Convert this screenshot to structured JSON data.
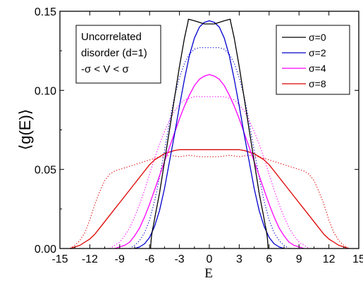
{
  "chart_data": {
    "type": "line",
    "title": "",
    "xlabel": "E",
    "ylabel": "⟨g(E)⟩",
    "xlim": [
      -15,
      15
    ],
    "ylim": [
      0,
      0.15
    ],
    "xticks": [
      -15,
      -12,
      -9,
      -6,
      -3,
      0,
      3,
      6,
      9,
      12,
      15
    ],
    "xtick_labels": [
      "-15",
      "-12",
      "-9",
      "-6",
      "-3",
      "0",
      "3",
      "6",
      "9",
      "12",
      "15"
    ],
    "yticks": [
      0,
      0.05,
      0.1,
      0.15
    ],
    "ytick_labels": [
      "0.00",
      "0.05",
      "0.10",
      "0.15"
    ],
    "annotation_lines": [
      "Uncorrelated",
      "disorder (d=1)",
      "-σ < V < σ"
    ],
    "legend_position": "top-right",
    "grid": false,
    "series": [
      {
        "name": "σ=0",
        "color": "#000000",
        "x": [
          -5.9,
          -5.85,
          -5.8,
          -5.7,
          -5.6,
          -5.4,
          -5.0,
          -4.5,
          -4.0,
          -3.5,
          -3.0,
          -2.5,
          -2.15,
          -2.1,
          -1.5,
          -1.0,
          -0.5,
          0,
          0.5,
          1.0,
          1.5,
          2.1,
          2.15,
          2.5,
          3.0,
          3.5,
          4.0,
          4.5,
          5.0,
          5.4,
          5.6,
          5.7,
          5.8,
          5.85,
          5.9
        ],
        "y": [
          0,
          0.005,
          0.008,
          0.012,
          0.015,
          0.022,
          0.035,
          0.055,
          0.075,
          0.095,
          0.115,
          0.133,
          0.143,
          0.145,
          0.144,
          0.143,
          0.142,
          0.142,
          0.142,
          0.143,
          0.144,
          0.145,
          0.143,
          0.133,
          0.115,
          0.095,
          0.075,
          0.055,
          0.035,
          0.022,
          0.015,
          0.012,
          0.008,
          0.005,
          0
        ]
      },
      {
        "name": "σ=2",
        "color": "#0000cc",
        "x": [
          -7.5,
          -7,
          -6.5,
          -6,
          -5.5,
          -5,
          -4.5,
          -4,
          -3.5,
          -3,
          -2.5,
          -2,
          -1.5,
          -1,
          -0.5,
          0,
          0.5,
          1,
          1.5,
          2,
          2.5,
          3,
          3.5,
          4,
          4.5,
          5,
          5.5,
          6,
          6.5,
          7,
          7.5
        ],
        "y": [
          0,
          0.001,
          0.003,
          0.007,
          0.014,
          0.024,
          0.038,
          0.055,
          0.072,
          0.09,
          0.107,
          0.122,
          0.133,
          0.14,
          0.143,
          0.144,
          0.143,
          0.14,
          0.133,
          0.122,
          0.107,
          0.09,
          0.072,
          0.055,
          0.038,
          0.024,
          0.014,
          0.007,
          0.003,
          0.001,
          0
        ]
      },
      {
        "name": "σ=4",
        "color": "#ff00ff",
        "x": [
          -9.5,
          -9,
          -8.5,
          -8,
          -7.5,
          -7,
          -6.5,
          -6,
          -5.5,
          -5,
          -4.5,
          -4,
          -3.5,
          -3,
          -2.5,
          -2,
          -1.5,
          -1,
          -0.5,
          0,
          0.5,
          1,
          1.5,
          2,
          2.5,
          3,
          3.5,
          4,
          4.5,
          5,
          5.5,
          6,
          6.5,
          7,
          7.5,
          8,
          8.5,
          9,
          9.5
        ],
        "y": [
          0,
          0.001,
          0.002,
          0.004,
          0.008,
          0.013,
          0.02,
          0.028,
          0.037,
          0.046,
          0.055,
          0.064,
          0.073,
          0.082,
          0.09,
          0.097,
          0.103,
          0.107,
          0.109,
          0.11,
          0.109,
          0.107,
          0.103,
          0.097,
          0.09,
          0.082,
          0.073,
          0.064,
          0.055,
          0.046,
          0.037,
          0.028,
          0.02,
          0.013,
          0.008,
          0.004,
          0.002,
          0.001,
          0
        ]
      },
      {
        "name": "σ=8",
        "color": "#dd0000",
        "x": [
          -14,
          -13.5,
          -13,
          -12.5,
          -12,
          -11.5,
          -11,
          -10.5,
          -10,
          -9.5,
          -9,
          -8.5,
          -8,
          -7.5,
          -7,
          -6.5,
          -6,
          -5.5,
          -5,
          -4.5,
          -4,
          -3.5,
          -3,
          -2,
          -1,
          0,
          1,
          2,
          3,
          3.5,
          4,
          4.5,
          5,
          5.5,
          6,
          6.5,
          7,
          7.5,
          8,
          8.5,
          9,
          9.5,
          10,
          10.5,
          11,
          11.5,
          12,
          12.5,
          13,
          13.5,
          14
        ],
        "y": [
          0,
          0.001,
          0.002,
          0.004,
          0.006,
          0.009,
          0.013,
          0.017,
          0.021,
          0.025,
          0.029,
          0.033,
          0.037,
          0.041,
          0.045,
          0.049,
          0.053,
          0.056,
          0.058,
          0.06,
          0.061,
          0.062,
          0.0625,
          0.0625,
          0.0625,
          0.0625,
          0.0625,
          0.0625,
          0.0625,
          0.062,
          0.061,
          0.06,
          0.058,
          0.056,
          0.053,
          0.049,
          0.045,
          0.041,
          0.037,
          0.033,
          0.029,
          0.025,
          0.021,
          0.017,
          0.013,
          0.009,
          0.006,
          0.004,
          0.002,
          0.001,
          0
        ]
      },
      {
        "name": "σ=2 (dotted)",
        "color": "#0000cc",
        "dotted": true,
        "x": [
          -8,
          -7.5,
          -7,
          -6.5,
          -6,
          -5.5,
          -5,
          -4.5,
          -4,
          -3.5,
          -3,
          -2.5,
          -2,
          -1.5,
          -1,
          -0.5,
          0,
          0.5,
          1,
          1.5,
          2,
          2.5,
          3,
          3.5,
          4,
          4.5,
          5,
          5.5,
          6,
          6.5,
          7,
          7.5,
          8
        ],
        "y": [
          0,
          0.002,
          0.005,
          0.01,
          0.018,
          0.03,
          0.045,
          0.062,
          0.08,
          0.096,
          0.108,
          0.117,
          0.123,
          0.126,
          0.127,
          0.127,
          0.127,
          0.127,
          0.127,
          0.126,
          0.123,
          0.117,
          0.108,
          0.096,
          0.08,
          0.062,
          0.045,
          0.03,
          0.018,
          0.01,
          0.005,
          0.002,
          0
        ]
      },
      {
        "name": "σ=4 (dotted)",
        "color": "#ff00ff",
        "dotted": true,
        "x": [
          -10,
          -9.5,
          -9,
          -8.5,
          -8,
          -7.5,
          -7,
          -6.5,
          -6,
          -5.5,
          -5,
          -4.5,
          -4,
          -3.5,
          -3,
          -2.5,
          -2,
          -1.5,
          -1,
          -0.5,
          0,
          0.5,
          1,
          1.5,
          2,
          2.5,
          3,
          3.5,
          4,
          4.5,
          5,
          5.5,
          6,
          6.5,
          7,
          7.5,
          8,
          8.5,
          9,
          9.5,
          10
        ],
        "y": [
          0,
          0.002,
          0.004,
          0.008,
          0.013,
          0.02,
          0.028,
          0.037,
          0.047,
          0.057,
          0.066,
          0.074,
          0.081,
          0.087,
          0.091,
          0.094,
          0.095,
          0.096,
          0.096,
          0.096,
          0.096,
          0.096,
          0.096,
          0.096,
          0.095,
          0.094,
          0.091,
          0.087,
          0.081,
          0.074,
          0.066,
          0.057,
          0.047,
          0.037,
          0.028,
          0.02,
          0.013,
          0.008,
          0.004,
          0.002,
          0
        ]
      },
      {
        "name": "σ=8 (dotted)",
        "color": "#dd0000",
        "dotted": true,
        "x": [
          -14,
          -13.5,
          -13,
          -12.5,
          -12,
          -11.5,
          -11,
          -10.5,
          -10,
          -9.5,
          -9,
          -8.5,
          -8,
          -7.5,
          -7,
          -6.5,
          -6,
          -5.5,
          -5,
          -4.5,
          -4,
          -3,
          -2,
          -1,
          0,
          1,
          2,
          3,
          4,
          4.5,
          5,
          5.5,
          6,
          6.5,
          7,
          7.5,
          8,
          8.5,
          9,
          9.5,
          10,
          10.5,
          11,
          11.5,
          12,
          12.5,
          13,
          13.5,
          14
        ],
        "y": [
          0,
          0.002,
          0.005,
          0.01,
          0.018,
          0.028,
          0.036,
          0.043,
          0.047,
          0.049,
          0.05,
          0.051,
          0.052,
          0.053,
          0.054,
          0.055,
          0.056,
          0.057,
          0.058,
          0.058,
          0.059,
          0.058,
          0.059,
          0.058,
          0.058,
          0.058,
          0.059,
          0.058,
          0.059,
          0.058,
          0.058,
          0.057,
          0.056,
          0.055,
          0.054,
          0.053,
          0.052,
          0.051,
          0.05,
          0.049,
          0.047,
          0.043,
          0.036,
          0.028,
          0.018,
          0.01,
          0.005,
          0.002,
          0
        ]
      }
    ],
    "legend_entries": [
      "σ=0",
      "σ=2",
      "σ=4",
      "σ=8"
    ]
  }
}
